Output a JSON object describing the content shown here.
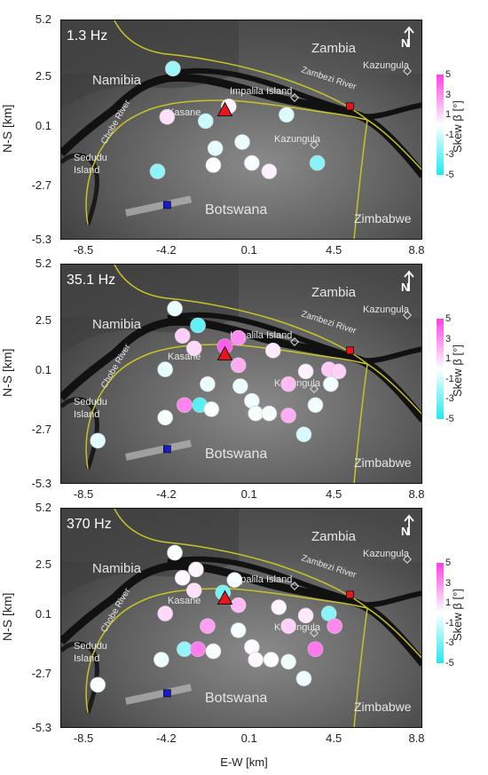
{
  "axes": {
    "ylabel": "N-S [km]",
    "xlabel": "E-W [km]",
    "yticks": [
      "5.2",
      "2.5",
      "0.1",
      "-2.7",
      "-5.3"
    ],
    "xticks": [
      "-8.5",
      "-4.2",
      "0.1",
      "4.5",
      "8.8"
    ],
    "xlim": [
      -9.7,
      9.1
    ],
    "ylim": [
      -5.3,
      5.2
    ]
  },
  "colorbar": {
    "title": "Skew β [°]",
    "ticks": [
      "5",
      "3",
      "1",
      "-1",
      "-3",
      "-5"
    ],
    "range": [
      -5,
      5
    ],
    "color_max": "#ff3fe6",
    "color_mid": "#ffffff",
    "color_min": "#1de9f2"
  },
  "map_labels": {
    "zambia": "Zambia",
    "namibia": "Namibia",
    "botswana": "Botswana",
    "zimbabwe": "Zimbabwe",
    "impalila": "Impalila Island",
    "zambezi": "Zambezi River",
    "kazungula_n": "Kazungula",
    "kazungula_s": "Kazungula",
    "kasane": "Kasane",
    "chobe": "Chobe River",
    "sedudu_1": "Sedudu",
    "sedudu_2": "Island",
    "north": "N"
  },
  "markers": {
    "triangle": {
      "x": -1.2,
      "y": 0.9,
      "color": "#e8151b"
    },
    "square_red": {
      "x": 5.3,
      "y": 1.1,
      "color": "#e8151b"
    },
    "square_blue": {
      "x": -4.2,
      "y": -3.6,
      "color": "#1919d6"
    }
  },
  "chart_data": [
    {
      "type": "scatter",
      "title": "1.3 Hz",
      "x_label": "E-W [km]",
      "y_label": "N-S [km]",
      "color_value": "Skew β [°]",
      "points": [
        {
          "x": -3.9,
          "y": 2.9,
          "skew": -2.2
        },
        {
          "x": -4.2,
          "y": 0.6,
          "skew": 0.8
        },
        {
          "x": -2.2,
          "y": 0.4,
          "skew": -1.2
        },
        {
          "x": -1.7,
          "y": -0.9,
          "skew": -0.6
        },
        {
          "x": -1.8,
          "y": -1.7,
          "skew": 0.0
        },
        {
          "x": -4.7,
          "y": -2.0,
          "skew": -2.5
        },
        {
          "x": -1.0,
          "y": 1.1,
          "skew": 0.3
        },
        {
          "x": -0.3,
          "y": -0.6,
          "skew": -0.4
        },
        {
          "x": 0.2,
          "y": -1.6,
          "skew": -0.2
        },
        {
          "x": 1.1,
          "y": -2.0,
          "skew": 0.4
        },
        {
          "x": 2.0,
          "y": 0.7,
          "skew": -0.8
        },
        {
          "x": 3.6,
          "y": -1.6,
          "skew": -2.6
        }
      ]
    },
    {
      "type": "scatter",
      "title": "35.1 Hz",
      "x_label": "E-W [km]",
      "y_label": "N-S [km]",
      "color_value": "Skew β [°]",
      "points": [
        {
          "x": -3.8,
          "y": 3.1,
          "skew": -0.5
        },
        {
          "x": -3.4,
          "y": 1.8,
          "skew": 1.3
        },
        {
          "x": -2.6,
          "y": 2.3,
          "skew": -3.5
        },
        {
          "x": -2.8,
          "y": 1.2,
          "skew": 1.0
        },
        {
          "x": -4.3,
          "y": 0.2,
          "skew": -0.5
        },
        {
          "x": -4.3,
          "y": -2.1,
          "skew": -0.2
        },
        {
          "x": -3.3,
          "y": -1.5,
          "skew": 3.2
        },
        {
          "x": -2.1,
          "y": -0.5,
          "skew": -0.4
        },
        {
          "x": -2.5,
          "y": -1.5,
          "skew": -3.7
        },
        {
          "x": -1.9,
          "y": -1.7,
          "skew": -0.1
        },
        {
          "x": -1.2,
          "y": 1.3,
          "skew": 4.2
        },
        {
          "x": -0.5,
          "y": 1.7,
          "skew": 3.0
        },
        {
          "x": -0.5,
          "y": 0.4,
          "skew": 2.2
        },
        {
          "x": -0.4,
          "y": -0.6,
          "skew": -0.4
        },
        {
          "x": 0.2,
          "y": -1.3,
          "skew": -0.3
        },
        {
          "x": 0.4,
          "y": -1.9,
          "skew": -0.2
        },
        {
          "x": 1.1,
          "y": -1.9,
          "skew": -0.2
        },
        {
          "x": 1.3,
          "y": 1.1,
          "skew": 0.6
        },
        {
          "x": 2.1,
          "y": -0.5,
          "skew": 1.8
        },
        {
          "x": 2.1,
          "y": -2.0,
          "skew": 2.1
        },
        {
          "x": 3.0,
          "y": 0.1,
          "skew": 0.4
        },
        {
          "x": 3.5,
          "y": -1.5,
          "skew": -0.3
        },
        {
          "x": 2.9,
          "y": -2.9,
          "skew": -0.9
        },
        {
          "x": 4.2,
          "y": 0.2,
          "skew": 1.4
        },
        {
          "x": 4.7,
          "y": 0.1,
          "skew": 1.2
        },
        {
          "x": 4.3,
          "y": -0.5,
          "skew": -0.3
        },
        {
          "x": -7.8,
          "y": -3.2,
          "skew": -0.6
        }
      ]
    },
    {
      "type": "scatter",
      "title": "370 Hz",
      "x_label": "E-W [km]",
      "y_label": "N-S [km]",
      "color_value": "Skew β [°]",
      "points": [
        {
          "x": -3.8,
          "y": 3.1,
          "skew": -0.1
        },
        {
          "x": -3.4,
          "y": 1.9,
          "skew": 0.2
        },
        {
          "x": -2.7,
          "y": 2.3,
          "skew": 0.3
        },
        {
          "x": -2.8,
          "y": 1.3,
          "skew": 0.8
        },
        {
          "x": -4.3,
          "y": 0.2,
          "skew": 1.0
        },
        {
          "x": -4.5,
          "y": -2.0,
          "skew": -0.3
        },
        {
          "x": -3.3,
          "y": -1.5,
          "skew": -2.4
        },
        {
          "x": -2.1,
          "y": -0.4,
          "skew": 2.5
        },
        {
          "x": -2.6,
          "y": -1.5,
          "skew": 3.4
        },
        {
          "x": -1.8,
          "y": -1.6,
          "skew": -0.1
        },
        {
          "x": -1.3,
          "y": 1.2,
          "skew": -3.0
        },
        {
          "x": -0.7,
          "y": 1.8,
          "skew": -0.1
        },
        {
          "x": -0.5,
          "y": 0.6,
          "skew": 1.8
        },
        {
          "x": -0.5,
          "y": -0.6,
          "skew": -0.2
        },
        {
          "x": 0.2,
          "y": -1.4,
          "skew": 0.1
        },
        {
          "x": 0.4,
          "y": -2.0,
          "skew": 0.2
        },
        {
          "x": 1.2,
          "y": -2.0,
          "skew": 0.0
        },
        {
          "x": 1.6,
          "y": 0.5,
          "skew": 0.3
        },
        {
          "x": 2.1,
          "y": -0.4,
          "skew": 1.2
        },
        {
          "x": 2.1,
          "y": -2.1,
          "skew": -0.3
        },
        {
          "x": 3.0,
          "y": 0.1,
          "skew": 0.6
        },
        {
          "x": 3.5,
          "y": -1.5,
          "skew": 3.6
        },
        {
          "x": 2.9,
          "y": -2.9,
          "skew": -0.4
        },
        {
          "x": 4.2,
          "y": 0.2,
          "skew": -2.6
        },
        {
          "x": 4.5,
          "y": -0.4,
          "skew": 3.1
        },
        {
          "x": -7.8,
          "y": -3.2,
          "skew": -0.1
        }
      ]
    }
  ]
}
